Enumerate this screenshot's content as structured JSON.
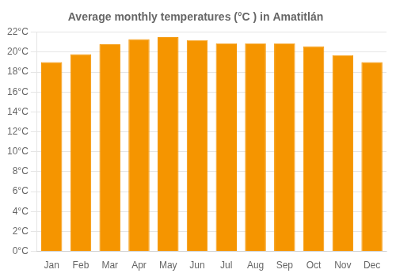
{
  "chart_data": {
    "type": "bar",
    "title": "Average monthly temperatures (°C ) in Amatitlán",
    "categories": [
      "Jan",
      "Feb",
      "Mar",
      "Apr",
      "May",
      "Jun",
      "Jul",
      "Aug",
      "Sep",
      "Oct",
      "Nov",
      "Dec"
    ],
    "values": [
      19.0,
      19.8,
      20.8,
      21.3,
      21.5,
      21.2,
      20.9,
      20.9,
      20.9,
      20.6,
      19.7,
      19.0
    ],
    "color": "#F59500",
    "ylim": [
      0,
      22
    ],
    "yticks": [
      {
        "value": 0,
        "label": "0°C"
      },
      {
        "value": 2,
        "label": "2°C"
      },
      {
        "value": 4,
        "label": "4°C"
      },
      {
        "value": 6,
        "label": "6°C"
      },
      {
        "value": 8,
        "label": "8°C"
      },
      {
        "value": 10,
        "label": "10°C"
      },
      {
        "value": 12,
        "label": "12°C"
      },
      {
        "value": 14,
        "label": "14°C"
      },
      {
        "value": 16,
        "label": "16°C"
      },
      {
        "value": 18,
        "label": "18°C"
      },
      {
        "value": 20,
        "label": "20°C"
      },
      {
        "value": 22,
        "label": "22°C"
      }
    ],
    "grid": true
  }
}
